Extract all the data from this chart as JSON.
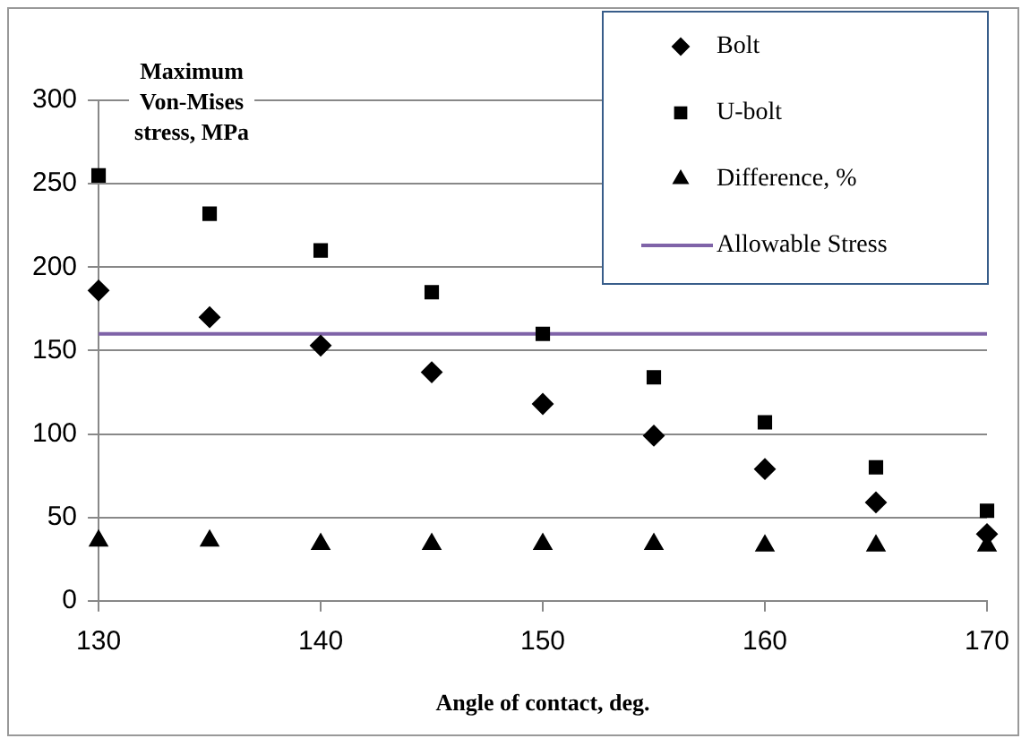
{
  "chart_data": {
    "type": "scatter",
    "xlabel": "Angle of contact, deg.",
    "ylabel": "Maximum Von-Mises stress, MPa",
    "x": [
      130,
      135,
      140,
      145,
      150,
      155,
      160,
      165,
      170
    ],
    "series": [
      {
        "name": "Bolt",
        "color": "#000000",
        "marker": "diamond",
        "values": [
          186,
          170,
          153,
          137,
          118,
          99,
          79,
          59,
          40
        ]
      },
      {
        "name": "U-bolt",
        "color": "#000000",
        "marker": "square",
        "values": [
          255,
          232,
          210,
          185,
          160,
          134,
          107,
          80,
          54
        ]
      },
      {
        "name": "Difference, %",
        "color": "#000000",
        "marker": "triangle",
        "values": [
          36,
          36,
          34,
          34,
          34,
          34,
          33,
          33,
          33
        ]
      }
    ],
    "ref_lines": [
      {
        "axis": "y",
        "value": 160,
        "label": "Allowable Stress",
        "color": "#7f63a8"
      }
    ],
    "xlim": [
      130,
      170
    ],
    "xticks": [
      130,
      140,
      150,
      160,
      170
    ],
    "ylim": [
      0,
      300
    ],
    "yticks": [
      0,
      50,
      100,
      150,
      200,
      250,
      300
    ],
    "grid": "y",
    "legend": "top right"
  }
}
